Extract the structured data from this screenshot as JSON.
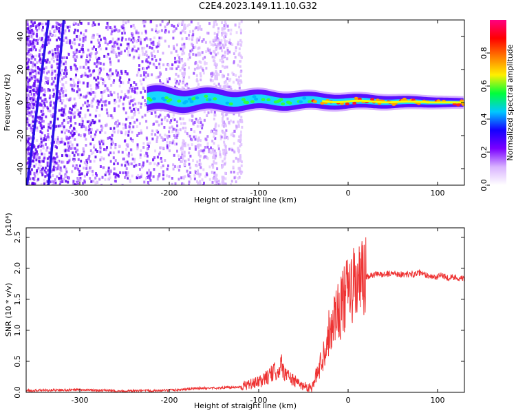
{
  "figure": {
    "title": "C2E4.2023.149.11.10.G32"
  },
  "chart_data": [
    {
      "type": "heatmap",
      "xlabel": "Height of straight line (km)",
      "ylabel": "Frequency (Hz)",
      "xlim": [
        -360,
        130
      ],
      "ylim": [
        -50,
        50
      ],
      "xticks": [
        -300,
        -200,
        -100,
        0,
        100
      ],
      "yticks": [
        -40,
        -20,
        0,
        20,
        40
      ],
      "colorbar": {
        "label": "Normalized spectral amplitude",
        "range": [
          0.0,
          1.0
        ],
        "ticks": [
          "0.0",
          "0.2",
          "0.4",
          "0.6",
          "0.8"
        ],
        "colormap": [
          "#ffffff",
          "#d9b3ff",
          "#7a00ff",
          "#1400ff",
          "#00c8ff",
          "#00ff3a",
          "#fff000",
          "#ff7a00",
          "#ff0000",
          "#ff0080"
        ]
      },
      "features": [
        {
          "name": "sloped line",
          "x": [
            -359,
            -335
          ],
          "y": [
            -50,
            50
          ]
        },
        {
          "name": "sloped line",
          "x": [
            -335,
            -318
          ],
          "y": [
            -50,
            50
          ]
        },
        {
          "name": "signal band",
          "x": [
            -225,
            130
          ],
          "center_y": [
            2,
            0
          ],
          "amplitude": [
            0.4,
            0.9
          ]
        }
      ]
    },
    {
      "type": "line",
      "xlabel": "Height of straight line (km)",
      "ylabel": "SNR (10 * v/v)",
      "yscale_label": "(x10⁴)",
      "xlim": [
        -360,
        130
      ],
      "ylim": [
        0,
        2.65
      ],
      "xticks": [
        -300,
        -200,
        -100,
        0,
        100
      ],
      "yticks": [
        "0.0",
        "0.5",
        "1.0",
        "1.5",
        "2.0",
        "2.5"
      ],
      "color": "#ee3333",
      "x": [
        -360,
        -300,
        -250,
        -200,
        -175,
        -150,
        -125,
        -100,
        -90,
        -80,
        -75,
        -70,
        -60,
        -50,
        -40,
        -30,
        -25,
        -20,
        -15,
        -10,
        -5,
        0,
        10,
        20,
        30,
        40,
        50,
        60,
        70,
        80,
        90,
        100,
        105,
        110,
        120,
        130
      ],
      "y": [
        0.03,
        0.04,
        0.02,
        0.03,
        0.06,
        0.07,
        0.08,
        0.16,
        0.25,
        0.35,
        0.45,
        0.3,
        0.18,
        0.1,
        0.08,
        0.5,
        0.75,
        1.05,
        1.25,
        1.35,
        1.45,
        1.62,
        1.75,
        1.85,
        1.9,
        1.9,
        1.92,
        1.9,
        1.9,
        1.92,
        1.88,
        1.85,
        1.9,
        1.85,
        1.85,
        1.83
      ]
    }
  ]
}
